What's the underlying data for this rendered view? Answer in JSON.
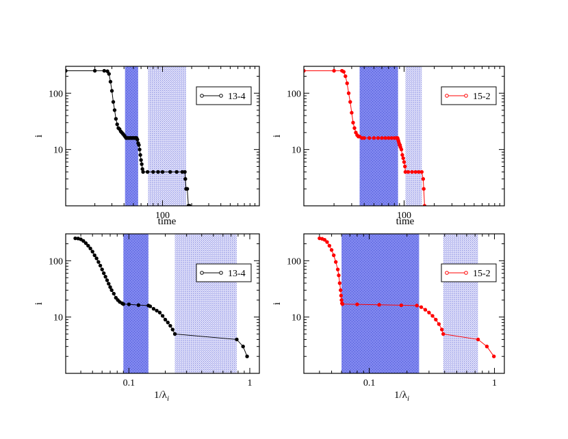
{
  "chart_data": [
    {
      "type": "scatter",
      "panel": "top-left",
      "xlabel": "time",
      "ylabel": "i",
      "xscale": "log",
      "yscale": "log",
      "xlim": [
        10,
        1000
      ],
      "ylim": [
        1,
        300
      ],
      "xticks": [
        {
          "value": 100,
          "label": "100"
        }
      ],
      "yticks": [
        {
          "value": 10,
          "label": "10"
        },
        {
          "value": 100,
          "label": "100"
        }
      ],
      "grid": false,
      "legend": "right",
      "color": "#000000",
      "shaded_bands": [
        {
          "x": [
            41,
            56
          ],
          "style": "dense"
        },
        {
          "x": [
            71,
            175
          ],
          "style": "light"
        }
      ],
      "series": [
        {
          "name": "13-4",
          "points": [
            [
              10,
              250
            ],
            [
              20,
              250
            ],
            [
              25,
              250
            ],
            [
              27,
              245
            ],
            [
              28,
              220
            ],
            [
              29,
              160
            ],
            [
              30,
              110
            ],
            [
              31,
              70
            ],
            [
              32,
              50
            ],
            [
              33,
              35
            ],
            [
              34,
              28
            ],
            [
              35,
              24
            ],
            [
              36,
              23
            ],
            [
              37,
              21
            ],
            [
              38,
              20
            ],
            [
              39,
              19
            ],
            [
              40,
              18
            ],
            [
              41,
              17
            ],
            [
              42,
              16
            ],
            [
              43,
              16
            ],
            [
              44,
              16
            ],
            [
              45,
              16
            ],
            [
              46,
              16
            ],
            [
              47,
              16
            ],
            [
              48,
              16
            ],
            [
              49,
              16
            ],
            [
              50,
              16
            ],
            [
              51,
              16
            ],
            [
              52,
              16
            ],
            [
              53,
              16
            ],
            [
              54,
              16
            ],
            [
              55,
              15
            ],
            [
              56,
              13
            ],
            [
              57,
              12
            ],
            [
              58,
              10
            ],
            [
              59,
              8
            ],
            [
              60,
              6.5
            ],
            [
              61,
              5.5
            ],
            [
              62,
              4.5
            ],
            [
              63,
              4
            ],
            [
              70,
              4
            ],
            [
              80,
              4
            ],
            [
              90,
              4
            ],
            [
              100,
              4
            ],
            [
              120,
              4
            ],
            [
              140,
              4
            ],
            [
              160,
              4
            ],
            [
              170,
              4
            ],
            [
              172,
              3
            ],
            [
              175,
              2
            ],
            [
              180,
              2
            ],
            [
              185,
              1
            ],
            [
              190,
              1
            ]
          ]
        }
      ]
    },
    {
      "type": "scatter",
      "panel": "top-right",
      "xlabel": "time",
      "ylabel": "i",
      "xscale": "log",
      "yscale": "log",
      "xlim": [
        10,
        1000
      ],
      "ylim": [
        1,
        300
      ],
      "xticks": [
        {
          "value": 100,
          "label": "100"
        }
      ],
      "yticks": [
        {
          "value": 10,
          "label": "10"
        },
        {
          "value": 100,
          "label": "100"
        }
      ],
      "grid": false,
      "legend": "right",
      "color": "#ff0000",
      "shaded_bands": [
        {
          "x": [
            36,
            87
          ],
          "style": "dense"
        },
        {
          "x": [
            103,
            150
          ],
          "style": "light"
        }
      ],
      "series": [
        {
          "name": "15-2",
          "points": [
            [
              10,
              250
            ],
            [
              20,
              250
            ],
            [
              24,
              250
            ],
            [
              25,
              240
            ],
            [
              26,
              200
            ],
            [
              27,
              150
            ],
            [
              28,
              100
            ],
            [
              29,
              70
            ],
            [
              30,
              45
            ],
            [
              31,
              30
            ],
            [
              32,
              24
            ],
            [
              33,
              20
            ],
            [
              34,
              18
            ],
            [
              35,
              17
            ],
            [
              36,
              17
            ],
            [
              38,
              16
            ],
            [
              40,
              16
            ],
            [
              45,
              16
            ],
            [
              50,
              16
            ],
            [
              55,
              16
            ],
            [
              60,
              16
            ],
            [
              65,
              16
            ],
            [
              70,
              16
            ],
            [
              75,
              16
            ],
            [
              80,
              16
            ],
            [
              84,
              16
            ],
            [
              86,
              16
            ],
            [
              87,
              15
            ],
            [
              88,
              14
            ],
            [
              89,
              13
            ],
            [
              90,
              12
            ],
            [
              91,
              12
            ],
            [
              92,
              11
            ],
            [
              94,
              10
            ],
            [
              96,
              8
            ],
            [
              98,
              7
            ],
            [
              100,
              6
            ],
            [
              102,
              5
            ],
            [
              103,
              4
            ],
            [
              110,
              4
            ],
            [
              120,
              4
            ],
            [
              130,
              4
            ],
            [
              140,
              4
            ],
            [
              150,
              4
            ],
            [
              155,
              3
            ],
            [
              157,
              2
            ],
            [
              160,
              1
            ]
          ]
        }
      ]
    },
    {
      "type": "scatter",
      "panel": "bottom-left",
      "xlabel": "1/λ",
      "xlabel_sub": "i",
      "ylabel": "i",
      "xscale": "log",
      "yscale": "log",
      "xlim": [
        0.03,
        1.2
      ],
      "ylim": [
        1,
        300
      ],
      "xticks": [
        {
          "value": 0.1,
          "label": "0.1"
        },
        {
          "value": 1,
          "label": "1"
        }
      ],
      "yticks": [
        {
          "value": 10,
          "label": "10"
        },
        {
          "value": 100,
          "label": "100"
        }
      ],
      "grid": false,
      "legend": "right",
      "color": "#000000",
      "shaded_bands": [
        {
          "x": [
            0.09,
            0.145
          ],
          "style": "dense"
        },
        {
          "x": [
            0.24,
            0.78
          ],
          "style": "light"
        }
      ],
      "series": [
        {
          "name": "13-4",
          "points": [
            [
              0.036,
              250
            ],
            [
              0.038,
              248
            ],
            [
              0.04,
              240
            ],
            [
              0.042,
              225
            ],
            [
              0.044,
              205
            ],
            [
              0.046,
              185
            ],
            [
              0.048,
              165
            ],
            [
              0.05,
              145
            ],
            [
              0.052,
              125
            ],
            [
              0.054,
              110
            ],
            [
              0.056,
              95
            ],
            [
              0.058,
              82
            ],
            [
              0.06,
              70
            ],
            [
              0.062,
              60
            ],
            [
              0.064,
              52
            ],
            [
              0.066,
              45
            ],
            [
              0.068,
              39
            ],
            [
              0.07,
              34
            ],
            [
              0.072,
              30
            ],
            [
              0.075,
              26
            ],
            [
              0.078,
              22
            ],
            [
              0.081,
              20
            ],
            [
              0.084,
              18.5
            ],
            [
              0.088,
              17.5
            ],
            [
              0.09,
              17
            ],
            [
              0.1,
              16.8
            ],
            [
              0.12,
              16.3
            ],
            [
              0.145,
              16
            ],
            [
              0.15,
              15.5
            ],
            [
              0.16,
              14
            ],
            [
              0.17,
              13
            ],
            [
              0.18,
              12
            ],
            [
              0.19,
              10.5
            ],
            [
              0.2,
              9
            ],
            [
              0.21,
              8
            ],
            [
              0.22,
              7
            ],
            [
              0.23,
              6
            ],
            [
              0.24,
              5
            ],
            [
              0.78,
              4
            ],
            [
              0.88,
              3
            ],
            [
              0.95,
              2
            ]
          ]
        }
      ]
    },
    {
      "type": "scatter",
      "panel": "bottom-right",
      "xlabel": "1/λ",
      "xlabel_sub": "i",
      "ylabel": "i",
      "xscale": "log",
      "yscale": "log",
      "xlim": [
        0.03,
        1.2
      ],
      "ylim": [
        1,
        300
      ],
      "xticks": [
        {
          "value": 0.1,
          "label": "0.1"
        },
        {
          "value": 1,
          "label": "1"
        }
      ],
      "yticks": [
        {
          "value": 10,
          "label": "10"
        },
        {
          "value": 100,
          "label": "100"
        }
      ],
      "grid": false,
      "legend": "right",
      "color": "#ff0000",
      "shaded_bands": [
        {
          "x": [
            0.06,
            0.25
          ],
          "style": "dense"
        },
        {
          "x": [
            0.39,
            0.74
          ],
          "style": "light"
        }
      ],
      "series": [
        {
          "name": "15-2",
          "points": [
            [
              0.04,
              250
            ],
            [
              0.042,
              245
            ],
            [
              0.044,
              235
            ],
            [
              0.046,
              215
            ],
            [
              0.048,
              185
            ],
            [
              0.05,
              155
            ],
            [
              0.052,
              125
            ],
            [
              0.054,
              95
            ],
            [
              0.056,
              70
            ],
            [
              0.057,
              55
            ],
            [
              0.058,
              40
            ],
            [
              0.059,
              30
            ],
            [
              0.0595,
              24
            ],
            [
              0.06,
              20
            ],
            [
              0.0605,
              17.5
            ],
            [
              0.061,
              17
            ],
            [
              0.08,
              16.8
            ],
            [
              0.12,
              16.5
            ],
            [
              0.18,
              16.2
            ],
            [
              0.24,
              16
            ],
            [
              0.26,
              15
            ],
            [
              0.28,
              13.5
            ],
            [
              0.3,
              12
            ],
            [
              0.32,
              10.5
            ],
            [
              0.34,
              9
            ],
            [
              0.36,
              7.5
            ],
            [
              0.38,
              6
            ],
            [
              0.39,
              5
            ],
            [
              0.74,
              4
            ],
            [
              0.87,
              3
            ],
            [
              0.99,
              2
            ]
          ]
        }
      ]
    }
  ]
}
